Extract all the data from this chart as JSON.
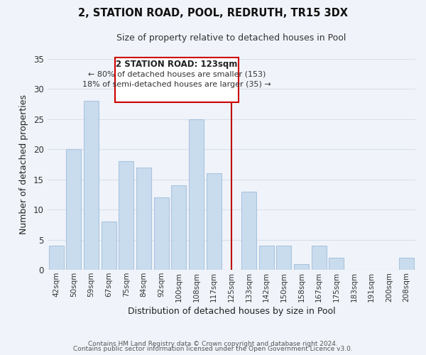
{
  "title": "2, STATION ROAD, POOL, REDRUTH, TR15 3DX",
  "subtitle": "Size of property relative to detached houses in Pool",
  "xlabel": "Distribution of detached houses by size in Pool",
  "ylabel": "Number of detached properties",
  "bar_labels": [
    "42sqm",
    "50sqm",
    "59sqm",
    "67sqm",
    "75sqm",
    "84sqm",
    "92sqm",
    "100sqm",
    "108sqm",
    "117sqm",
    "125sqm",
    "133sqm",
    "142sqm",
    "150sqm",
    "158sqm",
    "167sqm",
    "175sqm",
    "183sqm",
    "191sqm",
    "200sqm",
    "208sqm"
  ],
  "bar_values": [
    4,
    20,
    28,
    8,
    18,
    17,
    12,
    14,
    25,
    16,
    0,
    13,
    4,
    4,
    1,
    4,
    2,
    0,
    0,
    0,
    2
  ],
  "bar_color": "#c9dcee",
  "bar_edge_color": "#aac4de",
  "vline_color": "#bb0000",
  "vline_index": 10,
  "annotation_title": "2 STATION ROAD: 123sqm",
  "annotation_line1": "← 80% of detached houses are smaller (153)",
  "annotation_line2": "18% of semi-detached houses are larger (35) →",
  "annotation_box_edge": "#cc0000",
  "ylim": [
    0,
    35
  ],
  "yticks": [
    0,
    5,
    10,
    15,
    20,
    25,
    30,
    35
  ],
  "footer1": "Contains HM Land Registry data © Crown copyright and database right 2024.",
  "footer2": "Contains public sector information licensed under the Open Government Licence v3.0.",
  "bg_color": "#f0f4fa",
  "grid_color": "#d8e0ec"
}
